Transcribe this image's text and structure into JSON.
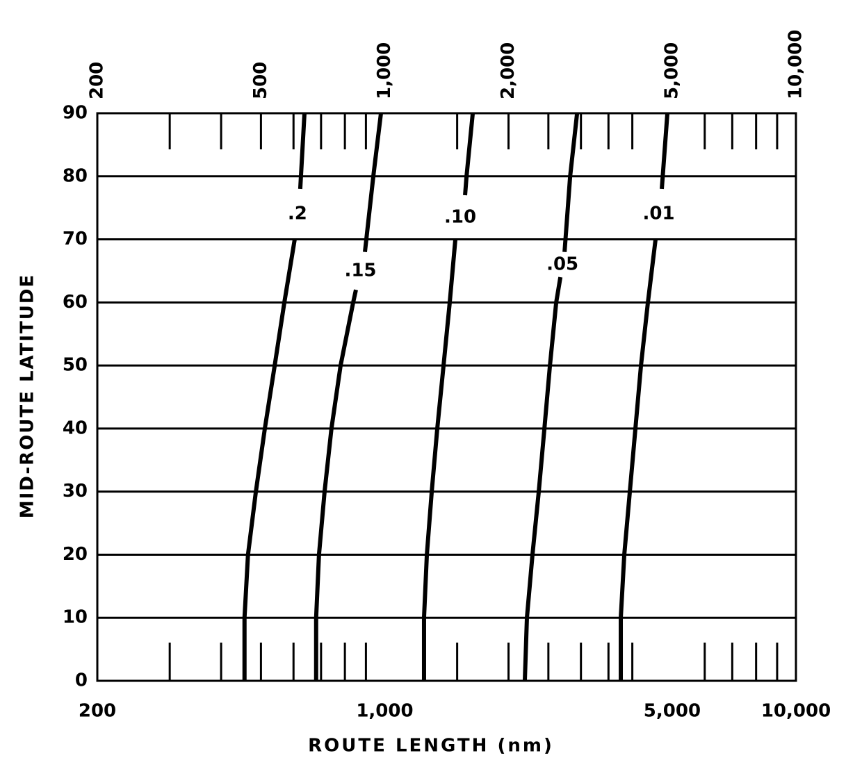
{
  "chart_data": {
    "type": "line",
    "x_label": "ROUTE LENGTH (nm)",
    "y_label": "MID-ROUTE LATITUDE",
    "xscale": "log",
    "xlim": [
      200,
      10000
    ],
    "ylim": [
      0,
      90
    ],
    "yticks": [
      0,
      10,
      20,
      30,
      40,
      50,
      60,
      70,
      80,
      90
    ],
    "xticks": [
      200,
      {
        "value": 1000,
        "label": "1,000"
      },
      {
        "value": 5000,
        "label": "5,000"
      },
      {
        "value": 10000,
        "label": "10,000"
      }
    ],
    "xticks_top": [
      200,
      500,
      {
        "value": 1000,
        "label": "1,000"
      },
      {
        "value": 2000,
        "label": "2,000"
      },
      {
        "value": 5000,
        "label": "5,000"
      },
      {
        "value": 10000,
        "label": "10,000"
      }
    ],
    "x_minor_ticks": [
      300,
      400,
      500,
      600,
      700,
      800,
      900,
      1500,
      2000,
      2500,
      3000,
      3500,
      4000,
      6000,
      7000,
      8000,
      9000
    ],
    "grid": true,
    "color": "#000000",
    "series": [
      {
        "name": ".2",
        "values": [
          0,
          10,
          20,
          30,
          40,
          50,
          60,
          70,
          null,
          78,
          90
        ],
        "x": [
          456,
          456,
          465,
          486,
          511,
          540,
          570,
          604,
          null,
          623,
          638
        ]
      },
      {
        "name": ".15",
        "values": [
          0,
          10,
          20,
          30,
          40,
          50,
          60,
          62,
          null,
          68,
          80,
          90
        ],
        "x": [
          681,
          681,
          692,
          714,
          742,
          781,
          838,
          851,
          null,
          895,
          938,
          979
        ]
      },
      {
        "name": ".10",
        "values": [
          0,
          10,
          20,
          30,
          40,
          50,
          60,
          70,
          null,
          77,
          80,
          90
        ],
        "x": [
          1246,
          1246,
          1266,
          1301,
          1342,
          1390,
          1439,
          1485,
          null,
          1568,
          1581,
          1637
        ]
      },
      {
        "name": ".05",
        "values": [
          0,
          10,
          20,
          30,
          40,
          50,
          60,
          64,
          null,
          68,
          80,
          90
        ],
        "x": [
          2191,
          2217,
          2287,
          2369,
          2445,
          2522,
          2612,
          2674,
          null,
          2737,
          2824,
          2936
        ]
      },
      {
        "name": ".01",
        "values": [
          0,
          10,
          20,
          30,
          40,
          50,
          60,
          70,
          null,
          78,
          90
        ],
        "x": [
          3750,
          3750,
          3824,
          3945,
          4070,
          4199,
          4365,
          4556,
          null,
          4718,
          4868
        ]
      }
    ]
  }
}
